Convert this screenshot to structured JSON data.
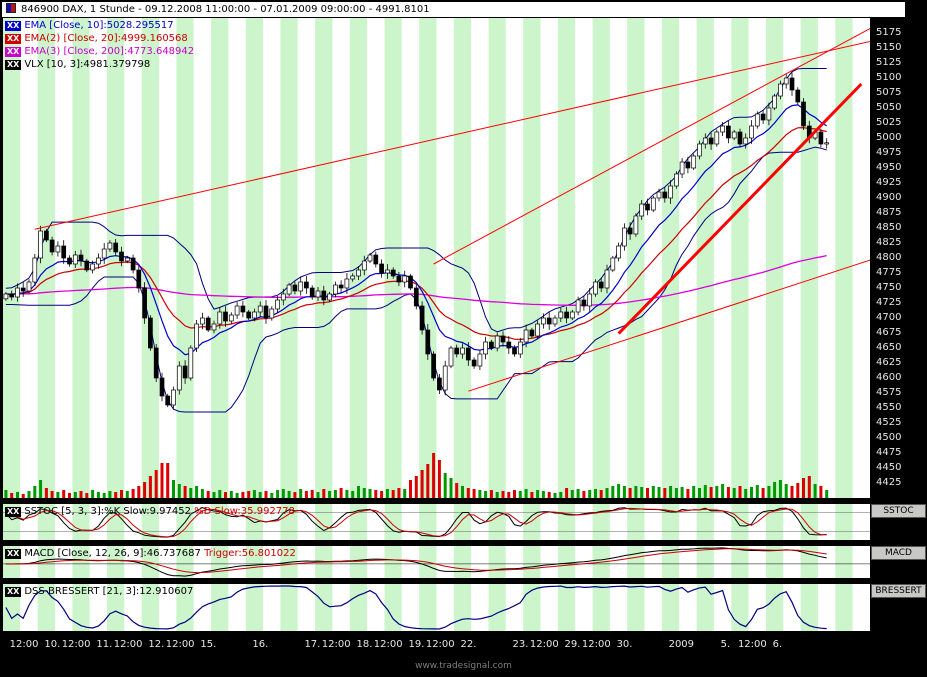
{
  "window": {
    "title": "846900  DAX, 1 Stunde - 09.12.2008 11:00:00 - 07.01.2009 09:00:00 - 4991.8101"
  },
  "legend": [
    {
      "chip": "XX",
      "text": "EMA [Close, 10]:5028.295517",
      "color": "#0000cc"
    },
    {
      "chip": "XX",
      "text": "EMA(2) [Close, 20]:4999.160568",
      "color": "#cc0000"
    },
    {
      "chip": "XX",
      "text": "EMA(3) [Close, 200]:4773.648942",
      "color": "#cc00cc"
    },
    {
      "chip": "XX",
      "text": "VLX [10, 3]:4981.379798",
      "color": "#000000"
    }
  ],
  "panels": {
    "sstoc": {
      "chip": "XX",
      "label_black": "SSTOC [5, 3, 3]:%K Slow:9.97452 ",
      "label_red": "%D Slow:35.992778",
      "axis_label": "SSTOC"
    },
    "macd": {
      "chip": "XX",
      "label_black": "MACD [Close, 12, 26, 9]:46.737687 ",
      "label_red": "Trigger:56.801022",
      "axis_label": "MACD"
    },
    "dss": {
      "chip": "XX",
      "label_black": "DSS-BRESSERT [21, 3]:12.910607",
      "label_red": "",
      "axis_label": "BRESSERT"
    }
  },
  "watermark": "www.tradesignal.com",
  "chart_data": {
    "type": "candlestick",
    "title": "DAX (846900), 1 Stunde, 09.12.2008 - 07.01.2009",
    "last_price": 4991.8101,
    "slots": 150,
    "price_range": [
      4400,
      5200
    ],
    "y_ticks": [
      5175,
      5150,
      5125,
      5100,
      5075,
      5050,
      5025,
      5000,
      4975,
      4950,
      4925,
      4900,
      4875,
      4850,
      4825,
      4800,
      4775,
      4750,
      4725,
      4700,
      4675,
      4650,
      4625,
      4600,
      4575,
      4550,
      4525,
      4500,
      4475,
      4450,
      4425
    ],
    "x_labels": [
      {
        "text": "12:00",
        "bar": 1
      },
      {
        "text": "10.",
        "bar": 7
      },
      {
        "text": "12:00",
        "bar": 10
      },
      {
        "text": "11.",
        "bar": 16
      },
      {
        "text": "12:00",
        "bar": 19
      },
      {
        "text": "12.",
        "bar": 25
      },
      {
        "text": "12:00",
        "bar": 28
      },
      {
        "text": "15.",
        "bar": 34
      },
      {
        "text": "16.",
        "bar": 43
      },
      {
        "text": "17.",
        "bar": 52
      },
      {
        "text": "12:00",
        "bar": 55
      },
      {
        "text": "18.",
        "bar": 61
      },
      {
        "text": "12:00",
        "bar": 64
      },
      {
        "text": "19.",
        "bar": 70
      },
      {
        "text": "12:00",
        "bar": 73
      },
      {
        "text": "22.",
        "bar": 79
      },
      {
        "text": "23.",
        "bar": 88
      },
      {
        "text": "12:00",
        "bar": 91
      },
      {
        "text": "29.",
        "bar": 97
      },
      {
        "text": "12:00",
        "bar": 100
      },
      {
        "text": "30.",
        "bar": 106
      },
      {
        "text": "2009",
        "bar": 115
      },
      {
        "text": "5.",
        "bar": 124
      },
      {
        "text": "12:00",
        "bar": 127
      },
      {
        "text": "6.",
        "bar": 133
      }
    ],
    "closes": [
      4740,
      4735,
      4750,
      4745,
      4760,
      4800,
      4845,
      4830,
      4810,
      4820,
      4800,
      4790,
      4805,
      4795,
      4780,
      4790,
      4800,
      4815,
      4825,
      4810,
      4795,
      4800,
      4780,
      4750,
      4700,
      4650,
      4600,
      4570,
      4555,
      4580,
      4620,
      4600,
      4650,
      4690,
      4700,
      4680,
      4690,
      4710,
      4695,
      4705,
      4720,
      4710,
      4700,
      4710,
      4720,
      4700,
      4715,
      4730,
      4740,
      4755,
      4745,
      4760,
      4750,
      4735,
      4745,
      4730,
      4740,
      4755,
      4750,
      4765,
      4770,
      4780,
      4795,
      4805,
      4790,
      4775,
      4780,
      4770,
      4760,
      4770,
      4750,
      4720,
      4680,
      4640,
      4600,
      4580,
      4620,
      4650,
      4640,
      4650,
      4630,
      4620,
      4640,
      4660,
      4650,
      4670,
      4660,
      4650,
      4640,
      4660,
      4680,
      4670,
      4690,
      4700,
      4690,
      4700,
      4710,
      4700,
      4710,
      4730,
      4720,
      4740,
      4760,
      4750,
      4780,
      4800,
      4820,
      4850,
      4840,
      4870,
      4890,
      4880,
      4900,
      4910,
      4900,
      4920,
      4940,
      4960,
      4950,
      4970,
      4990,
      5000,
      4990,
      5010,
      5020,
      5000,
      5010,
      4990,
      5000,
      5020,
      5040,
      5030,
      5050,
      5070,
      5090,
      5100,
      5080,
      5060,
      5020,
      5000,
      5010,
      4990,
      4992
    ],
    "volumes": [
      8,
      5,
      6,
      4,
      7,
      12,
      18,
      10,
      7,
      6,
      8,
      5,
      6,
      7,
      5,
      8,
      6,
      5,
      7,
      6,
      8,
      7,
      9,
      12,
      16,
      22,
      28,
      35,
      35,
      18,
      14,
      12,
      10,
      12,
      9,
      7,
      6,
      8,
      6,
      7,
      5,
      6,
      7,
      8,
      6,
      7,
      5,
      8,
      9,
      7,
      6,
      9,
      7,
      8,
      6,
      9,
      7,
      8,
      10,
      8,
      7,
      12,
      10,
      9,
      8,
      7,
      9,
      8,
      10,
      9,
      18,
      22,
      28,
      34,
      45,
      38,
      25,
      20,
      15,
      12,
      10,
      9,
      8,
      7,
      8,
      6,
      7,
      6,
      8,
      7,
      9,
      6,
      8,
      7,
      6,
      5,
      6,
      10,
      8,
      9,
      7,
      8,
      9,
      8,
      10,
      12,
      14,
      12,
      10,
      12,
      11,
      10,
      12,
      11,
      10,
      12,
      10,
      11,
      9,
      12,
      10,
      13,
      11,
      12,
      14,
      11,
      10,
      12,
      9,
      11,
      13,
      10,
      12,
      16,
      18,
      14,
      12,
      15,
      20,
      22,
      14,
      12,
      8
    ],
    "trendlines": [
      {
        "b1": 5,
        "p1": 4848,
        "b2": 150,
        "p2": 5162,
        "w": 1
      },
      {
        "b1": 74,
        "p1": 4790,
        "b2": 150,
        "p2": 5185,
        "w": 1
      },
      {
        "b1": 80,
        "p1": 4578,
        "b2": 150,
        "p2": 4798,
        "w": 1
      },
      {
        "b1": 106,
        "p1": 4674,
        "b2": 148,
        "p2": 5090,
        "w": 3
      }
    ],
    "indicator_params": {
      "ema": [
        10,
        20,
        200
      ],
      "vlx": [
        10,
        3
      ],
      "sstoc": [
        5,
        3,
        3
      ],
      "macd": [
        12,
        26,
        9
      ],
      "dss_bressert": [
        21,
        3
      ]
    },
    "colors": {
      "stripe": "#ccf5cc",
      "up": "#ffffff",
      "down": "#000000",
      "vol_up": "#009900",
      "vol_down": "#dd0000",
      "ema10": "#0000cc",
      "ema20": "#cc0000",
      "ema200": "#dd00dd",
      "vlx": "#000080",
      "trend": "#ff0000"
    }
  }
}
